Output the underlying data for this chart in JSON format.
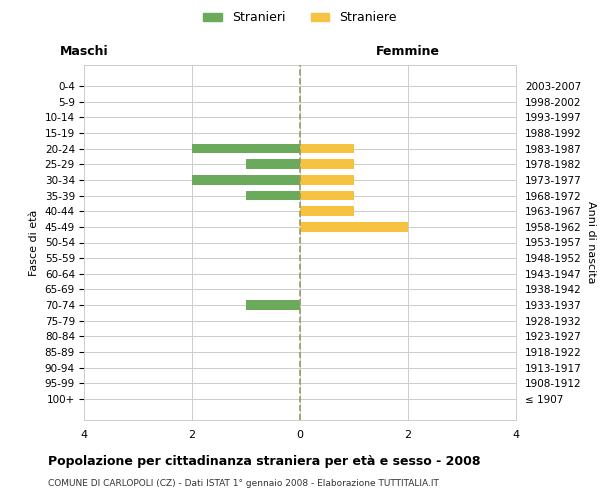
{
  "age_groups": [
    "100+",
    "95-99",
    "90-94",
    "85-89",
    "80-84",
    "75-79",
    "70-74",
    "65-69",
    "60-64",
    "55-59",
    "50-54",
    "45-49",
    "40-44",
    "35-39",
    "30-34",
    "25-29",
    "20-24",
    "15-19",
    "10-14",
    "5-9",
    "0-4"
  ],
  "birth_years": [
    "≤ 1907",
    "1908-1912",
    "1913-1917",
    "1918-1922",
    "1923-1927",
    "1928-1932",
    "1933-1937",
    "1938-1942",
    "1943-1947",
    "1948-1952",
    "1953-1957",
    "1958-1962",
    "1963-1967",
    "1968-1972",
    "1973-1977",
    "1978-1982",
    "1983-1987",
    "1988-1992",
    "1993-1997",
    "1998-2002",
    "2003-2007"
  ],
  "males": [
    0,
    0,
    0,
    0,
    0,
    0,
    1,
    0,
    0,
    0,
    0,
    0,
    0,
    1,
    2,
    1,
    2,
    0,
    0,
    0,
    0
  ],
  "females": [
    0,
    0,
    0,
    0,
    0,
    0,
    0,
    0,
    0,
    0,
    0,
    2,
    1,
    1,
    1,
    1,
    1,
    0,
    0,
    0,
    0
  ],
  "male_color": "#6aaa5a",
  "female_color": "#f5c242",
  "xlim": 4,
  "title": "Popolazione per cittadinanza straniera per età e sesso - 2008",
  "subtitle": "COMUNE DI CARLOPOLI (CZ) - Dati ISTAT 1° gennaio 2008 - Elaborazione TUTTITALIA.IT",
  "xlabel_left": "Maschi",
  "xlabel_right": "Femmine",
  "ylabel_left": "Fasce di età",
  "ylabel_right": "Anni di nascita",
  "legend_stranieri": "Stranieri",
  "legend_straniere": "Straniere",
  "bg_color": "#ffffff",
  "grid_color": "#cccccc",
  "dashed_line_color": "#999966"
}
